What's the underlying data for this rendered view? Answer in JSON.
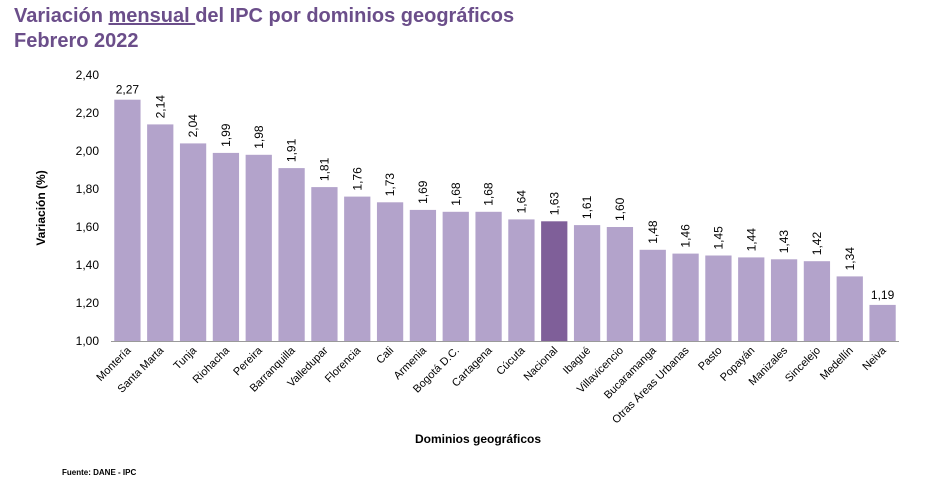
{
  "title": {
    "line1_before": "Variación ",
    "line1_underlined": "mensual ",
    "line1_after": "del IPC por dominios geográficos",
    "line2": "Febrero 2022"
  },
  "source": "Fuente: DANE - IPC",
  "colors": {
    "bar": "#b3a3cb",
    "highlight": "#7f5f99",
    "title": "#6b4e8a"
  },
  "chart_data": {
    "type": "bar",
    "title": "Variación mensual del IPC por dominios geográficos Febrero 2022",
    "xlabel": "Dominios geográficos",
    "ylabel": "Variación (%)",
    "ylim": [
      1.0,
      2.4
    ],
    "yticks": [
      "1,00",
      "1,20",
      "1,40",
      "1,60",
      "1,80",
      "2,00",
      "2,20",
      "2,40"
    ],
    "highlight": "Nacional",
    "categories": [
      "Montería",
      "Santa Marta",
      "Tunja",
      "Riohacha",
      "Pereira",
      "Barranquilla",
      "Valledupar",
      "Florencia",
      "Cali",
      "Armenia",
      "Bogotá D.C.",
      "Cartagena",
      "Cúcuta",
      "Nacional",
      "Ibagué",
      "Villavicencio",
      "Bucaramanga",
      "Otras Áreas Urbanas",
      "Pasto",
      "Popayán",
      "Manizales",
      "Sincelejo",
      "Medellín",
      "Neiva"
    ],
    "values": [
      2.27,
      2.14,
      2.04,
      1.99,
      1.98,
      1.91,
      1.81,
      1.76,
      1.73,
      1.69,
      1.68,
      1.68,
      1.64,
      1.63,
      1.61,
      1.6,
      1.48,
      1.46,
      1.45,
      1.44,
      1.43,
      1.42,
      1.34,
      1.19
    ],
    "labels": [
      "2,27",
      "2,14",
      "2,04",
      "1,99",
      "1,98",
      "1,91",
      "1,81",
      "1,76",
      "1,73",
      "1,69",
      "1,68",
      "1,68",
      "1,64",
      "1,63",
      "1,61",
      "1,60",
      "1,48",
      "1,46",
      "1,45",
      "1,44",
      "1,43",
      "1,42",
      "1,34",
      "1,19"
    ]
  }
}
